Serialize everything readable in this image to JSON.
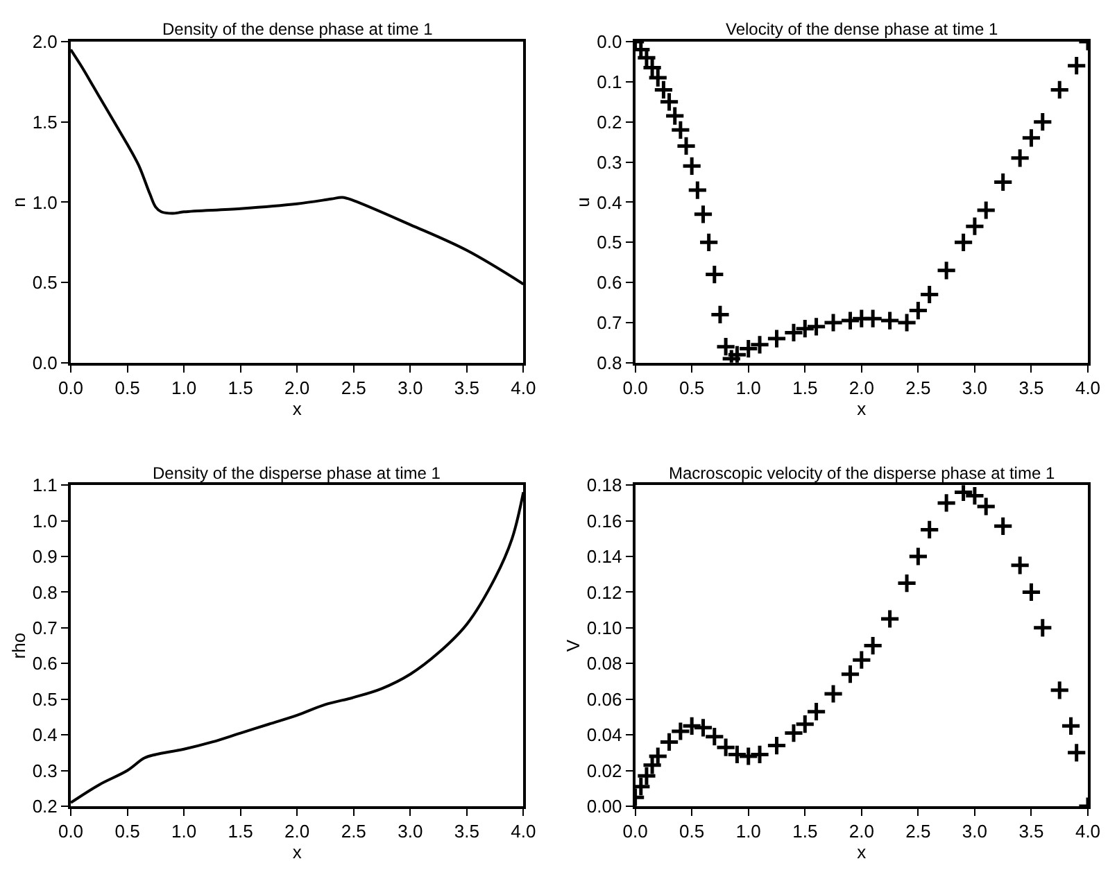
{
  "chart_data": [
    {
      "type": "line",
      "title": "Density of the dense phase at time 1",
      "xlabel": "x",
      "ylabel": "n",
      "line_style": "solid",
      "marker": "none",
      "xlim": [
        0.0,
        4.0
      ],
      "ylim": [
        0.0,
        2.0
      ],
      "xticks": [
        {
          "value": 0,
          "label": "0.0"
        },
        {
          "value": 0.5,
          "label": "0.5"
        },
        {
          "value": 1,
          "label": "1.0"
        },
        {
          "value": 1.5,
          "label": "1.5"
        },
        {
          "value": 2,
          "label": "2.0"
        },
        {
          "value": 2.5,
          "label": "2.5"
        },
        {
          "value": 3,
          "label": "3.0"
        },
        {
          "value": 3.5,
          "label": "3.5"
        },
        {
          "value": 4,
          "label": "4.0"
        }
      ],
      "yticks": [
        {
          "value": 0,
          "label": "0.0"
        },
        {
          "value": 0.5,
          "label": "0.5"
        },
        {
          "value": 1,
          "label": "1.0"
        },
        {
          "value": 1.5,
          "label": "1.5"
        },
        {
          "value": 2,
          "label": "2.0"
        }
      ],
      "x": [
        0,
        0.1,
        0.2,
        0.3,
        0.4,
        0.5,
        0.6,
        0.7,
        0.75,
        0.8,
        0.9,
        1.0,
        1.5,
        2.0,
        2.3,
        2.4,
        2.5,
        3.0,
        3.5,
        4.0
      ],
      "series": [
        {
          "color": "#000000",
          "values": [
            1.95,
            1.84,
            1.72,
            1.6,
            1.48,
            1.36,
            1.23,
            1.05,
            0.97,
            0.94,
            0.93,
            0.94,
            0.96,
            0.99,
            1.02,
            1.03,
            1.01,
            0.86,
            0.7,
            0.49
          ]
        }
      ]
    },
    {
      "type": "scatter",
      "title": "Velocity of the dense phase at time 1",
      "xlabel": "x",
      "ylabel": "u",
      "marker": "cross",
      "xlim": [
        0.0,
        4.0
      ],
      "ylim": [
        0.8,
        0.0
      ],
      "xticks": [
        {
          "value": 0,
          "label": "0.0"
        },
        {
          "value": 0.5,
          "label": "0.5"
        },
        {
          "value": 1,
          "label": "1.0"
        },
        {
          "value": 1.5,
          "label": "1.5"
        },
        {
          "value": 2,
          "label": "2.0"
        },
        {
          "value": 2.5,
          "label": "2.5"
        },
        {
          "value": 3,
          "label": "3.0"
        },
        {
          "value": 3.5,
          "label": "3.5"
        },
        {
          "value": 4,
          "label": "4.0"
        }
      ],
      "yticks": [
        {
          "value": 0,
          "label": "0.0"
        },
        0.1,
        0.2,
        0.3,
        0.4,
        0.5,
        0.6,
        0.7,
        0.8
      ],
      "x": [
        0,
        0.05,
        0.1,
        0.15,
        0.2,
        0.25,
        0.3,
        0.35,
        0.4,
        0.45,
        0.5,
        0.55,
        0.6,
        0.65,
        0.7,
        0.75,
        0.8,
        0.85,
        0.9,
        1.0,
        1.1,
        1.25,
        1.4,
        1.5,
        1.6,
        1.75,
        1.9,
        2.0,
        2.1,
        2.25,
        2.4,
        2.5,
        2.6,
        2.75,
        2.9,
        3.0,
        3.1,
        3.25,
        3.4,
        3.5,
        3.6,
        3.75,
        3.9,
        4.0
      ],
      "series": [
        {
          "color": "#000000",
          "values": [
            0.0,
            0.02,
            0.04,
            0.065,
            0.09,
            0.12,
            0.15,
            0.185,
            0.22,
            0.26,
            0.31,
            0.37,
            0.43,
            0.5,
            0.58,
            0.68,
            0.76,
            0.79,
            0.78,
            0.765,
            0.755,
            0.74,
            0.725,
            0.715,
            0.71,
            0.7,
            0.695,
            0.69,
            0.69,
            0.695,
            0.7,
            0.67,
            0.63,
            0.57,
            0.5,
            0.46,
            0.42,
            0.35,
            0.29,
            0.24,
            0.2,
            0.12,
            0.06,
            0.0
          ]
        }
      ]
    },
    {
      "type": "line",
      "title": "Density of the disperse phase at time 1",
      "xlabel": "x",
      "ylabel": "rho",
      "line_style": "solid",
      "marker": "none",
      "xlim": [
        0.0,
        4.0
      ],
      "ylim": [
        0.2,
        1.1
      ],
      "xticks": [
        {
          "value": 0,
          "label": "0.0"
        },
        {
          "value": 0.5,
          "label": "0.5"
        },
        {
          "value": 1,
          "label": "1.0"
        },
        {
          "value": 1.5,
          "label": "1.5"
        },
        {
          "value": 2,
          "label": "2.0"
        },
        {
          "value": 2.5,
          "label": "2.5"
        },
        {
          "value": 3,
          "label": "3.0"
        },
        {
          "value": 3.5,
          "label": "3.5"
        },
        {
          "value": 4,
          "label": "4.0"
        }
      ],
      "yticks": [
        0.2,
        0.3,
        0.4,
        0.5,
        0.6,
        0.7,
        0.8,
        0.9,
        {
          "value": 1,
          "label": "1.0"
        },
        1.1
      ],
      "x": [
        0,
        0.25,
        0.5,
        0.65,
        0.75,
        1.0,
        1.25,
        1.5,
        1.75,
        2.0,
        2.25,
        2.5,
        2.75,
        3.0,
        3.25,
        3.5,
        3.75,
        3.9,
        4.0
      ],
      "series": [
        {
          "color": "#000000",
          "values": [
            0.21,
            0.26,
            0.3,
            0.335,
            0.345,
            0.36,
            0.38,
            0.405,
            0.43,
            0.455,
            0.485,
            0.505,
            0.53,
            0.57,
            0.63,
            0.71,
            0.84,
            0.95,
            1.08
          ]
        }
      ]
    },
    {
      "type": "scatter",
      "title": "Macroscopic velocity of the disperse phase at time 1",
      "xlabel": "x",
      "ylabel": "V",
      "marker": "cross",
      "xlim": [
        0.0,
        4.0
      ],
      "ylim": [
        0.0,
        0.18
      ],
      "xticks": [
        {
          "value": 0,
          "label": "0.0"
        },
        {
          "value": 0.5,
          "label": "0.5"
        },
        {
          "value": 1,
          "label": "1.0"
        },
        {
          "value": 1.5,
          "label": "1.5"
        },
        {
          "value": 2,
          "label": "2.0"
        },
        {
          "value": 2.5,
          "label": "2.5"
        },
        {
          "value": 3,
          "label": "3.0"
        },
        {
          "value": 3.5,
          "label": "3.5"
        },
        {
          "value": 4,
          "label": "4.0"
        }
      ],
      "yticks": [
        {
          "value": 0.0,
          "label": "0.00"
        },
        {
          "value": 0.02,
          "label": "0.02"
        },
        {
          "value": 0.04,
          "label": "0.04"
        },
        {
          "value": 0.06,
          "label": "0.06"
        },
        {
          "value": 0.08,
          "label": "0.08"
        },
        {
          "value": 0.1,
          "label": "0.10"
        },
        {
          "value": 0.12,
          "label": "0.12"
        },
        {
          "value": 0.14,
          "label": "0.14"
        },
        {
          "value": 0.16,
          "label": "0.16"
        },
        {
          "value": 0.18,
          "label": "0.18"
        }
      ],
      "x": [
        0,
        0.05,
        0.1,
        0.15,
        0.2,
        0.3,
        0.4,
        0.5,
        0.6,
        0.7,
        0.8,
        0.9,
        1.0,
        1.1,
        1.25,
        1.4,
        1.5,
        1.6,
        1.75,
        1.9,
        2.0,
        2.1,
        2.25,
        2.4,
        2.5,
        2.6,
        2.75,
        2.9,
        3.0,
        3.1,
        3.25,
        3.4,
        3.5,
        3.6,
        3.75,
        3.85,
        3.9,
        4.0
      ],
      "series": [
        {
          "color": "#000000",
          "values": [
            0.005,
            0.011,
            0.017,
            0.023,
            0.028,
            0.036,
            0.042,
            0.045,
            0.044,
            0.039,
            0.033,
            0.029,
            0.028,
            0.029,
            0.034,
            0.041,
            0.046,
            0.053,
            0.063,
            0.074,
            0.082,
            0.09,
            0.105,
            0.125,
            0.14,
            0.155,
            0.17,
            0.176,
            0.174,
            0.168,
            0.157,
            0.135,
            0.12,
            0.1,
            0.065,
            0.045,
            0.03,
            0.0
          ]
        }
      ]
    }
  ]
}
